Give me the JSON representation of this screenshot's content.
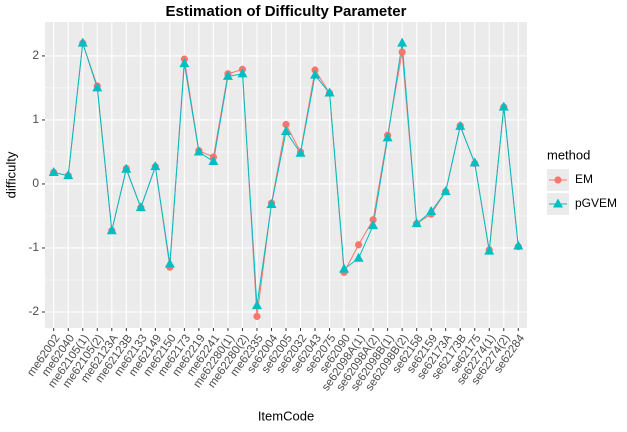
{
  "chart_data": {
    "type": "line",
    "title": "Estimation of Difficulty Parameter",
    "x_label": "ItemCode",
    "y_label": "difficulty",
    "legend_title": "method",
    "categories": [
      "me62002",
      "me62040",
      "me62105(1)",
      "me62105(2)",
      "me62123A",
      "me62123B",
      "me62133",
      "me62149",
      "me62150",
      "me62173",
      "me62219",
      "me62241",
      "me62280(1)",
      "me62280(2)",
      "me62335",
      "se62004",
      "se62005",
      "se62032",
      "se62043",
      "se62075",
      "se62090",
      "se62098A(1)",
      "se62098A(2)",
      "se62098B(1)",
      "se62098B(2)",
      "se62158",
      "se62159",
      "se62173A",
      "se62173B",
      "se62175",
      "se62274(1)",
      "se62274(2)",
      "se62284"
    ],
    "series": [
      {
        "name": "EM",
        "color": "#F8766D",
        "marker": "circle",
        "values": [
          0.18,
          0.13,
          2.2,
          1.53,
          -0.73,
          0.24,
          -0.37,
          0.27,
          -1.3,
          1.95,
          0.52,
          0.42,
          1.72,
          1.79,
          -2.07,
          -0.3,
          0.93,
          0.5,
          1.78,
          1.42,
          -1.38,
          -0.95,
          -0.56,
          0.76,
          2.06,
          -0.62,
          -0.47,
          -0.12,
          0.91,
          0.32,
          -1.03,
          1.2,
          -0.98
        ]
      },
      {
        "name": "pGVEM",
        "color": "#00BFC4",
        "marker": "triangle",
        "values": [
          0.18,
          0.13,
          2.2,
          1.5,
          -0.73,
          0.23,
          -0.37,
          0.27,
          -1.25,
          1.88,
          0.5,
          0.35,
          1.68,
          1.72,
          -1.9,
          -0.32,
          0.82,
          0.48,
          1.7,
          1.42,
          -1.33,
          -1.16,
          -0.65,
          0.72,
          2.2,
          -0.62,
          -0.43,
          -0.12,
          0.9,
          0.33,
          -1.05,
          1.2,
          -0.97
        ]
      }
    ],
    "ylim": [
      -2.25,
      2.53
    ],
    "yticks": [
      -2,
      -1,
      0,
      1,
      2
    ],
    "grid": true
  }
}
